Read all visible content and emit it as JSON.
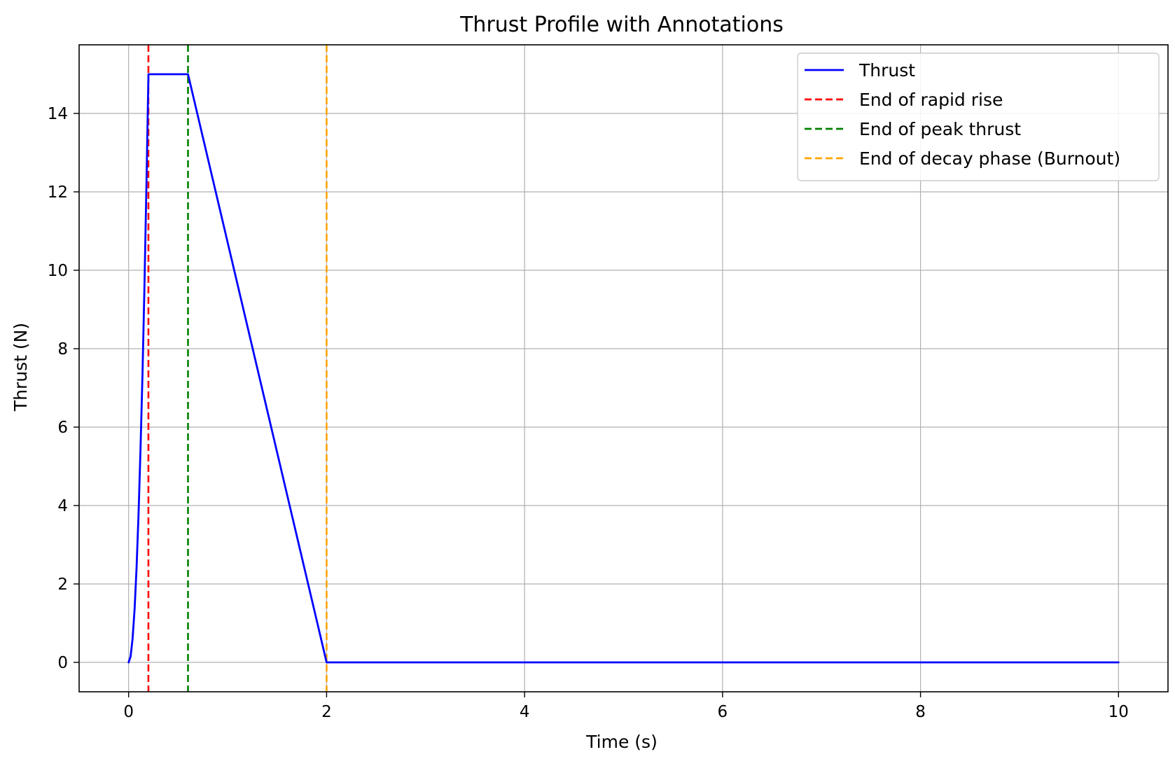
{
  "chart_data": {
    "type": "line",
    "title": "Thrust Profile with Annotations",
    "xlabel": "Time (s)",
    "ylabel": "Thrust (N)",
    "xlim": [
      -0.5,
      10.5
    ],
    "ylim": [
      -0.75,
      15.75
    ],
    "xticks": [
      0,
      2,
      4,
      6,
      8,
      10
    ],
    "yticks": [
      0,
      2,
      4,
      6,
      8,
      10,
      12,
      14
    ],
    "grid": true,
    "legend_position": "top-right",
    "series": [
      {
        "name": "Thrust",
        "color": "#0000ff",
        "style": "solid",
        "x": [
          0,
          0.02,
          0.04,
          0.06,
          0.08,
          0.1,
          0.12,
          0.14,
          0.16,
          0.18,
          0.2,
          0.6,
          2.0,
          10.0
        ],
        "y": [
          0,
          0.15,
          0.6,
          1.35,
          2.4,
          3.75,
          5.4,
          7.35,
          9.6,
          12.15,
          15.0,
          15.0,
          0,
          0
        ]
      }
    ],
    "vlines": [
      {
        "name": "End of rapid rise",
        "x": 0.2,
        "color": "#ff0000"
      },
      {
        "name": "End of peak thrust",
        "x": 0.6,
        "color": "#008000"
      },
      {
        "name": "End of decay phase (Burnout)",
        "x": 2.0,
        "color": "#ffa500"
      }
    ]
  }
}
